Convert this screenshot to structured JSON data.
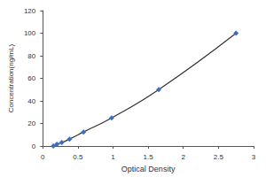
{
  "chart_data": {
    "type": "line",
    "xlabel": "Optical Density",
    "ylabel": "Concentration(ng/mL)",
    "x": [
      0.15,
      0.2,
      0.27,
      0.38,
      0.58,
      0.98,
      1.65,
      2.75
    ],
    "values": [
      0,
      1.56,
      3.12,
      6.25,
      12.5,
      25,
      50,
      100
    ],
    "color": "#3a6fc4",
    "marker": "diamond",
    "line_style": "solid",
    "xlim": [
      0,
      3
    ],
    "xticks": [
      0,
      0.5,
      1,
      1.5,
      2,
      2.5,
      3
    ],
    "ylim": [
      0,
      120
    ],
    "yticks": [
      0,
      20,
      40,
      60,
      80,
      100,
      120
    ],
    "grid": false
  }
}
